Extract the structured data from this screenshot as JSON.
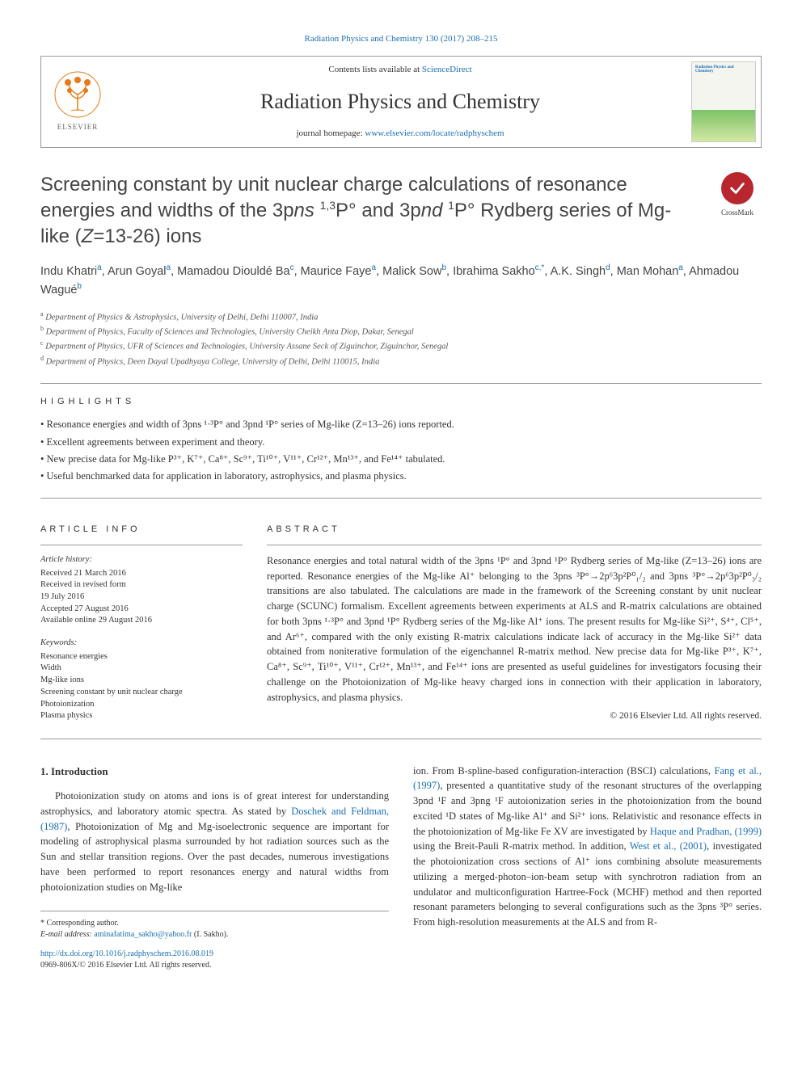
{
  "top_link": "Radiation Physics and Chemistry 130 (2017) 208–215",
  "header": {
    "contents_prefix": "Contents lists available at ",
    "contents_link": "ScienceDirect",
    "journal_name": "Radiation Physics and Chemistry",
    "homepage_prefix": "journal homepage: ",
    "homepage_url": "www.elsevier.com/locate/radphyschem",
    "elsevier_label": "ELSEVIER",
    "cover_title": "Radiation Physics and Chemistry"
  },
  "crossmark_label": "CrossMark",
  "title_parts": {
    "p1": "Screening constant by unit nuclear charge calculations of resonance energies and widths of the 3p",
    "p2": "ns",
    "p3": " ",
    "sup1": "1,3",
    "p4": "P° and 3p",
    "p5": "nd",
    "sup2": "1",
    "p6": "P° Rydberg series of Mg-like (",
    "p7": "Z",
    "p8": "=13-26) ions"
  },
  "authors": [
    {
      "name": "Indu Khatri",
      "aff": "a"
    },
    {
      "name": "Arun Goyal",
      "aff": "a"
    },
    {
      "name": "Mamadou Diouldé Ba",
      "aff": "c"
    },
    {
      "name": "Maurice Faye",
      "aff": "a"
    },
    {
      "name": "Malick Sow",
      "aff": "b"
    },
    {
      "name": "Ibrahima Sakho",
      "aff": "c,*"
    },
    {
      "name": "A.K. Singh",
      "aff": "d"
    },
    {
      "name": "Man Mohan",
      "aff": "a"
    },
    {
      "name": "Ahmadou Wagué",
      "aff": "b"
    }
  ],
  "affiliations": [
    {
      "label": "a",
      "text": "Department of Physics & Astrophysics, University of Delhi, Delhi 110007, India"
    },
    {
      "label": "b",
      "text": "Department of Physics, Faculty of Sciences and Technologies, University Cheikh Anta Diop, Dakar, Senegal"
    },
    {
      "label": "c",
      "text": "Department of Physics, UFR of Sciences and Technologies, University Assane Seck of Ziguinchor, Ziguinchor, Senegal"
    },
    {
      "label": "d",
      "text": "Department of Physics, Deen Dayal Upadhyaya College, University of Delhi, Delhi 110015, India"
    }
  ],
  "highlights_label": "HIGHLIGHTS",
  "highlights": [
    "Resonance energies and width of 3pns ¹·³P° and 3pnd ¹P° series of Mg-like (Z=13–26) ions reported.",
    "Excellent agreements between experiment and theory.",
    "New precise data for Mg-like P³⁺, K⁷⁺, Ca⁸⁺, Sc⁹⁺, Ti¹⁰⁺, V¹¹⁺, Cr¹²⁺, Mn¹³⁺, and Fe¹⁴⁺ tabulated.",
    "Useful benchmarked data for application in laboratory, astrophysics, and plasma physics."
  ],
  "article_info_label": "ARTICLE INFO",
  "abstract_label": "ABSTRACT",
  "article_history_label": "Article history:",
  "article_history": [
    "Received 21 March 2016",
    "Received in revised form",
    "19 July 2016",
    "Accepted 27 August 2016",
    "Available online 29 August 2016"
  ],
  "keywords_label": "Keywords:",
  "keywords": [
    "Resonance energies",
    "Width",
    "Mg-like ions",
    "Screening constant by unit nuclear charge",
    "Photoionization",
    "Plasma physics"
  ],
  "abstract_text": "Resonance energies and total natural width of the 3pns ¹P° and 3pnd ¹P° Rydberg series of Mg-like (Z=13–26) ions are reported. Resonance energies of the Mg-like Al⁺ belonging to the 3pns ³P°→2p⁶3p²P⁰₁/₂ and 3pns ³P°→2p⁶3p²P⁰₃/₂ transitions are also tabulated. The calculations are made in the framework of the Screening constant by unit nuclear charge (SCUNC) formalism. Excellent agreements between experiments at ALS and R-matrix calculations are obtained for both 3pns ¹·³P° and 3pnd ¹P° Rydberg series of the Mg-like Al⁺ ions. The present results for Mg-like Si²⁺, S⁴⁺, Cl⁵⁺, and Ar⁶⁺, compared with the only existing R-matrix calculations indicate lack of accuracy in the Mg-like Si²⁺ data obtained from noniterative formulation of the eigenchannel R-matrix method. New precise data for Mg-like P³⁺, K⁷⁺, Ca⁸⁺, Sc⁹⁺, Ti¹⁰⁺, V¹¹⁺, Cr¹²⁺, Mn¹³⁺, and Fe¹⁴⁺ ions are presented as useful guidelines for investigators focusing their challenge on the Photoionization of Mg-like heavy charged ions in connection with their application in laboratory, astrophysics, and plasma physics.",
  "copyright": "© 2016 Elsevier Ltd. All rights reserved.",
  "intro_heading": "1. Introduction",
  "intro_col1": "Photoionization study on atoms and ions is of great interest for understanding astrophysics, and laboratory atomic spectra. As stated by Doschek and Feldman, (1987), Photoionization of Mg and Mg-isoelectronic sequence are important for modeling of astrophysical plasma surrounded by hot radiation sources such as the Sun and stellar transition regions. Over the past decades, numerous investigations have been performed to report resonances energy and natural widths from photoionization studies on Mg-like",
  "intro_col1_link": "Doschek and Feldman, (1987)",
  "intro_col2": "ion. From B-spline-based configuration-interaction (BSCI) calculations, Fang et al., (1997), presented a quantitative study of the resonant structures of the overlapping 3pnd ¹F and 3png ¹F autoionization series in the photoionization from the bound excited ¹D states of Mg-like Al⁺ and Si²⁺ ions. Relativistic and resonance effects in the photoionization of Mg-like Fe XV are investigated by Haque and Pradhan, (1999) using the Breit-Pauli R-matrix method. In addition, West et al., (2001), investigated the photoionization cross sections of Al⁺ ions combining absolute measurements utilizing a merged-photon–ion-beam setup with synchrotron radiation from an undulator and multiconfiguration Hartree-Fock (MCHF) method and then reported resonant parameters belonging to several configurations such as the 3pns ³P° series. From high-resolution measurements at the ALS and from R-",
  "footer": {
    "corresponding": "* Corresponding author.",
    "email_label": "E-mail address: ",
    "email": "aminafatima_sakho@yahoo.fr",
    "email_suffix": " (I. Sakho).",
    "doi": "http://dx.doi.org/10.1016/j.radphyschem.2016.08.019",
    "issn": "0969-806X/© 2016 Elsevier Ltd. All rights reserved."
  },
  "colors": {
    "link": "#1a6fb5",
    "crossmark": "#b8262e",
    "elsevier_orange": "#e67a17",
    "text": "#333333"
  }
}
